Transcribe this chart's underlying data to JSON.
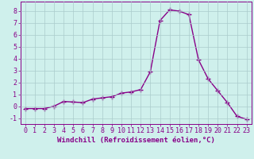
{
  "x": [
    0,
    1,
    2,
    3,
    4,
    5,
    6,
    7,
    8,
    9,
    10,
    11,
    12,
    13,
    14,
    15,
    16,
    17,
    18,
    19,
    20,
    21,
    22,
    23
  ],
  "y": [
    -0.2,
    -0.2,
    -0.2,
    0.0,
    0.4,
    0.35,
    0.3,
    0.6,
    0.7,
    0.8,
    1.1,
    1.2,
    1.4,
    2.9,
    7.2,
    8.1,
    8.0,
    7.7,
    3.9,
    2.3,
    1.3,
    0.3,
    -0.85,
    -1.1
  ],
  "line_color": "#880088",
  "marker": "+",
  "markersize": 4,
  "linewidth": 1.0,
  "bg_color": "#cff0ec",
  "grid_color": "#aacccc",
  "xlabel": "Windchill (Refroidissement éolien,°C)",
  "ylim": [
    -1.5,
    8.8
  ],
  "xlim": [
    -0.5,
    23.5
  ],
  "yticks": [
    -1,
    0,
    1,
    2,
    3,
    4,
    5,
    6,
    7,
    8
  ],
  "xticks": [
    0,
    1,
    2,
    3,
    4,
    5,
    6,
    7,
    8,
    9,
    10,
    11,
    12,
    13,
    14,
    15,
    16,
    17,
    18,
    19,
    20,
    21,
    22,
    23
  ],
  "tick_color": "#880088",
  "label_color": "#880088",
  "spine_color": "#880088",
  "xlabel_fontsize": 6.5,
  "tick_fontsize": 6.0,
  "fig_width": 3.2,
  "fig_height": 2.0,
  "dpi": 100
}
